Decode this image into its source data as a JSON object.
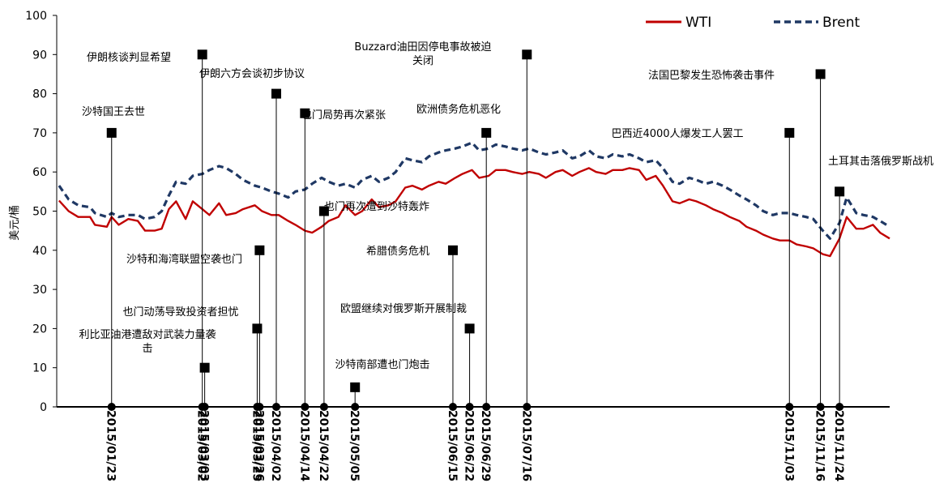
{
  "chart_data": {
    "type": "line",
    "ylabel": "美元/桶",
    "ylim": [
      0,
      100
    ],
    "yticks": [
      0,
      10,
      20,
      30,
      40,
      50,
      60,
      70,
      80,
      90,
      100
    ],
    "xlim": [
      "2014-12-31",
      "2015-12-15"
    ],
    "grid": false,
    "legend_position": "top-right",
    "series": [
      {
        "name": "WTI",
        "color": "#c00000",
        "style": "solid",
        "points": [
          [
            "2015-01-01",
            52.7
          ],
          [
            "2015-01-05",
            50.0
          ],
          [
            "2015-01-09",
            48.5
          ],
          [
            "2015-01-14",
            48.5
          ],
          [
            "2015-01-16",
            46.5
          ],
          [
            "2015-01-21",
            46.0
          ],
          [
            "2015-01-23",
            48.5
          ],
          [
            "2015-01-26",
            46.5
          ],
          [
            "2015-01-30",
            48.0
          ],
          [
            "2015-02-03",
            47.5
          ],
          [
            "2015-02-06",
            45.0
          ],
          [
            "2015-02-10",
            45.0
          ],
          [
            "2015-02-13",
            45.5
          ],
          [
            "2015-02-16",
            50.5
          ],
          [
            "2015-02-19",
            52.5
          ],
          [
            "2015-02-23",
            48.0
          ],
          [
            "2015-02-26",
            52.5
          ],
          [
            "2015-03-02",
            50.5
          ],
          [
            "2015-03-05",
            49.0
          ],
          [
            "2015-03-09",
            52.0
          ],
          [
            "2015-03-12",
            49.0
          ],
          [
            "2015-03-16",
            49.5
          ],
          [
            "2015-03-19",
            50.5
          ],
          [
            "2015-03-24",
            51.5
          ],
          [
            "2015-03-27",
            50.0
          ],
          [
            "2015-03-31",
            49.0
          ],
          [
            "2015-04-03",
            49.0
          ],
          [
            "2015-04-07",
            47.5
          ],
          [
            "2015-04-10",
            46.5
          ],
          [
            "2015-04-14",
            45.0
          ],
          [
            "2015-04-17",
            44.5
          ],
          [
            "2015-04-21",
            46.0
          ],
          [
            "2015-04-24",
            47.5
          ],
          [
            "2015-04-28",
            48.5
          ],
          [
            "2015-05-01",
            51.5
          ],
          [
            "2015-05-05",
            49.0
          ],
          [
            "2015-05-08",
            50.0
          ],
          [
            "2015-05-12",
            53.0
          ],
          [
            "2015-05-15",
            51.0
          ],
          [
            "2015-05-19",
            51.5
          ],
          [
            "2015-05-22",
            52.5
          ],
          [
            "2015-05-26",
            56.0
          ],
          [
            "2015-05-29",
            56.5
          ],
          [
            "2015-06-02",
            55.5
          ],
          [
            "2015-06-05",
            56.5
          ],
          [
            "2015-06-09",
            57.5
          ],
          [
            "2015-06-12",
            57.0
          ],
          [
            "2015-06-16",
            58.5
          ],
          [
            "2015-06-19",
            59.5
          ],
          [
            "2015-06-23",
            60.5
          ],
          [
            "2015-06-26",
            58.5
          ],
          [
            "2015-06-30",
            59.0
          ],
          [
            "2015-07-03",
            60.5
          ],
          [
            "2015-07-07",
            60.5
          ],
          [
            "2015-07-10",
            60.0
          ],
          [
            "2015-07-14",
            59.5
          ],
          [
            "2015-07-17",
            60.0
          ],
          [
            "2015-07-21",
            59.5
          ],
          [
            "2015-07-24",
            58.5
          ],
          [
            "2015-07-28",
            60.0
          ],
          [
            "2015-07-31",
            60.5
          ],
          [
            "2015-08-04",
            59.0
          ],
          [
            "2015-08-07",
            60.0
          ],
          [
            "2015-08-11",
            61.0
          ],
          [
            "2015-08-14",
            60.0
          ],
          [
            "2015-08-18",
            59.5
          ],
          [
            "2015-08-21",
            60.5
          ],
          [
            "2015-08-25",
            60.5
          ],
          [
            "2015-08-28",
            61.0
          ],
          [
            "2015-09-01",
            60.5
          ],
          [
            "2015-09-04",
            58.0
          ],
          [
            "2015-09-08",
            59.0
          ],
          [
            "2015-09-11",
            56.5
          ],
          [
            "2015-09-15",
            52.5
          ],
          [
            "2015-09-18",
            52.0
          ],
          [
            "2015-09-22",
            53.0
          ],
          [
            "2015-09-25",
            52.5
          ],
          [
            "2015-09-29",
            51.5
          ],
          [
            "2015-10-02",
            50.5
          ],
          [
            "2015-10-06",
            49.5
          ],
          [
            "2015-10-09",
            48.5
          ],
          [
            "2015-10-13",
            47.5
          ],
          [
            "2015-10-16",
            46.0
          ],
          [
            "2015-10-20",
            45.0
          ],
          [
            "2015-10-23",
            44.0
          ],
          [
            "2015-10-27",
            43.0
          ],
          [
            "2015-10-30",
            42.5
          ],
          [
            "2015-11-03",
            42.5
          ],
          [
            "2015-11-06",
            41.5
          ],
          [
            "2015-11-10",
            41.0
          ],
          [
            "2015-11-13",
            40.5
          ],
          [
            "2015-11-17",
            39.0
          ],
          [
            "2015-11-20",
            38.5
          ],
          [
            "2015-11-24",
            43.0
          ],
          [
            "2015-11-27",
            48.5
          ],
          [
            "2015-12-01",
            45.5
          ],
          [
            "2015-12-04",
            45.5
          ],
          [
            "2015-12-08",
            46.5
          ],
          [
            "2015-12-11",
            44.5
          ],
          [
            "2015-12-15",
            43.0
          ]
        ]
      },
      {
        "name": "Brent",
        "color": "#1f3864",
        "style": "dashed",
        "points": [
          [
            "2015-01-01",
            56.5
          ],
          [
            "2015-01-05",
            53.0
          ],
          [
            "2015-01-09",
            51.5
          ],
          [
            "2015-01-14",
            51.0
          ],
          [
            "2015-01-16",
            49.5
          ],
          [
            "2015-01-21",
            48.5
          ],
          [
            "2015-01-23",
            49.5
          ],
          [
            "2015-01-26",
            48.5
          ],
          [
            "2015-01-30",
            49.0
          ],
          [
            "2015-02-03",
            49.0
          ],
          [
            "2015-02-06",
            48.0
          ],
          [
            "2015-02-10",
            48.5
          ],
          [
            "2015-02-13",
            50.0
          ],
          [
            "2015-02-16",
            54.0
          ],
          [
            "2015-02-19",
            57.5
          ],
          [
            "2015-02-23",
            57.0
          ],
          [
            "2015-02-26",
            59.0
          ],
          [
            "2015-03-02",
            59.5
          ],
          [
            "2015-03-05",
            60.5
          ],
          [
            "2015-03-09",
            61.5
          ],
          [
            "2015-03-12",
            61.0
          ],
          [
            "2015-03-16",
            59.5
          ],
          [
            "2015-03-19",
            58.0
          ],
          [
            "2015-03-24",
            56.5
          ],
          [
            "2015-03-27",
            56.0
          ],
          [
            "2015-03-31",
            55.0
          ],
          [
            "2015-04-03",
            54.5
          ],
          [
            "2015-04-07",
            53.5
          ],
          [
            "2015-04-10",
            55.0
          ],
          [
            "2015-04-14",
            55.5
          ],
          [
            "2015-04-17",
            57.0
          ],
          [
            "2015-04-21",
            58.5
          ],
          [
            "2015-04-24",
            57.5
          ],
          [
            "2015-04-28",
            56.5
          ],
          [
            "2015-05-01",
            57.0
          ],
          [
            "2015-05-05",
            56.0
          ],
          [
            "2015-05-08",
            58.0
          ],
          [
            "2015-05-12",
            59.0
          ],
          [
            "2015-05-15",
            57.5
          ],
          [
            "2015-05-19",
            58.5
          ],
          [
            "2015-05-22",
            60.0
          ],
          [
            "2015-05-26",
            63.5
          ],
          [
            "2015-05-29",
            63.0
          ],
          [
            "2015-06-02",
            62.5
          ],
          [
            "2015-06-05",
            64.0
          ],
          [
            "2015-06-09",
            65.0
          ],
          [
            "2015-06-12",
            65.5
          ],
          [
            "2015-06-16",
            66.0
          ],
          [
            "2015-06-19",
            66.5
          ],
          [
            "2015-06-23",
            67.5
          ],
          [
            "2015-06-26",
            65.5
          ],
          [
            "2015-06-30",
            66.0
          ],
          [
            "2015-07-03",
            67.0
          ],
          [
            "2015-07-07",
            66.5
          ],
          [
            "2015-07-10",
            66.0
          ],
          [
            "2015-07-14",
            65.5
          ],
          [
            "2015-07-17",
            66.0
          ],
          [
            "2015-07-21",
            65.0
          ],
          [
            "2015-07-24",
            64.5
          ],
          [
            "2015-07-28",
            65.0
          ],
          [
            "2015-07-31",
            65.5
          ],
          [
            "2015-08-04",
            63.5
          ],
          [
            "2015-08-07",
            64.0
          ],
          [
            "2015-08-11",
            65.5
          ],
          [
            "2015-08-14",
            64.0
          ],
          [
            "2015-08-18",
            63.5
          ],
          [
            "2015-08-21",
            64.5
          ],
          [
            "2015-08-25",
            64.0
          ],
          [
            "2015-08-28",
            64.5
          ],
          [
            "2015-09-01",
            63.5
          ],
          [
            "2015-09-04",
            62.5
          ],
          [
            "2015-09-08",
            63.0
          ],
          [
            "2015-09-11",
            61.0
          ],
          [
            "2015-09-15",
            57.5
          ],
          [
            "2015-09-18",
            57.0
          ],
          [
            "2015-09-22",
            58.5
          ],
          [
            "2015-09-25",
            58.0
          ],
          [
            "2015-09-29",
            57.0
          ],
          [
            "2015-10-02",
            57.5
          ],
          [
            "2015-10-06",
            56.5
          ],
          [
            "2015-10-09",
            55.5
          ],
          [
            "2015-10-13",
            54.0
          ],
          [
            "2015-10-16",
            53.0
          ],
          [
            "2015-10-20",
            51.5
          ],
          [
            "2015-10-23",
            50.0
          ],
          [
            "2015-10-27",
            49.0
          ],
          [
            "2015-10-30",
            49.5
          ],
          [
            "2015-11-03",
            49.5
          ],
          [
            "2015-11-06",
            49.0
          ],
          [
            "2015-11-10",
            48.5
          ],
          [
            "2015-11-13",
            48.0
          ],
          [
            "2015-11-17",
            45.0
          ],
          [
            "2015-11-20",
            43.0
          ],
          [
            "2015-11-24",
            47.0
          ],
          [
            "2015-11-27",
            53.5
          ],
          [
            "2015-12-01",
            49.5
          ],
          [
            "2015-12-04",
            49.0
          ],
          [
            "2015-12-08",
            48.5
          ],
          [
            "2015-12-11",
            47.5
          ],
          [
            "2015-12-15",
            46.0
          ]
        ]
      }
    ],
    "event_dates": [
      "2015/01/23",
      "2015/03/02",
      "2015/03/03",
      "2015/03/25",
      "2015/03/26",
      "2015/04/02",
      "2015/04/14",
      "2015/04/22",
      "2015/05/05",
      "2015/06/15",
      "2015/06/22",
      "2015/06/29",
      "2015/07/16",
      "2015/11/03",
      "2015/11/16",
      "2015/11/24"
    ],
    "annotations": [
      {
        "date": "2015/01/23",
        "value": 70,
        "label": [
          "沙特国王去世"
        ]
      },
      {
        "date": "2015/03/02",
        "value": 90,
        "label": [
          "伊朗核谈判显希望"
        ]
      },
      {
        "date": "2015/03/03",
        "value": 10,
        "label": [
          "利比亚油港遭敌对武装力量袭",
          "击"
        ]
      },
      {
        "date": "2015/03/25",
        "value": 20,
        "label": [
          "也门动荡导致投资者担忧"
        ]
      },
      {
        "date": "2015/03/26",
        "value": 40,
        "label": [
          "沙特和海湾联盟空袭也门"
        ]
      },
      {
        "date": "2015/04/02",
        "value": 80,
        "label": [
          "伊朗六方会谈初步协议"
        ]
      },
      {
        "date": "2015/04/14",
        "value": 75,
        "label": [
          "也门局势再次紧张"
        ]
      },
      {
        "date": "2015/04/22",
        "value": 50,
        "label": [
          "也门再次遭到沙特轰炸"
        ]
      },
      {
        "date": "2015/05/05",
        "value": 5,
        "label": [
          "沙特南部遭也门炮击"
        ]
      },
      {
        "date": "2015/06/15",
        "value": 40,
        "label": [
          "希腊债务危机"
        ]
      },
      {
        "date": "2015/06/22",
        "value": 20,
        "label": [
          "欧盟继续对俄罗斯开展制裁"
        ]
      },
      {
        "date": "2015/06/29",
        "value": 70,
        "label": [
          "欧洲债务危机恶化"
        ]
      },
      {
        "date": "2015/07/16",
        "value": 90,
        "label": [
          "Buzzard油田因停电事故被迫",
          "关闭"
        ]
      },
      {
        "date": "2015/11/03",
        "value": 70,
        "label": [
          "巴西近4000人爆发工人罢工"
        ]
      },
      {
        "date": "2015/11/16",
        "value": 85,
        "label": [
          "法国巴黎发生恐怖袭击事件"
        ]
      },
      {
        "date": "2015/11/24",
        "value": 55,
        "label": [
          "土耳其击落俄罗斯战机"
        ]
      }
    ]
  }
}
